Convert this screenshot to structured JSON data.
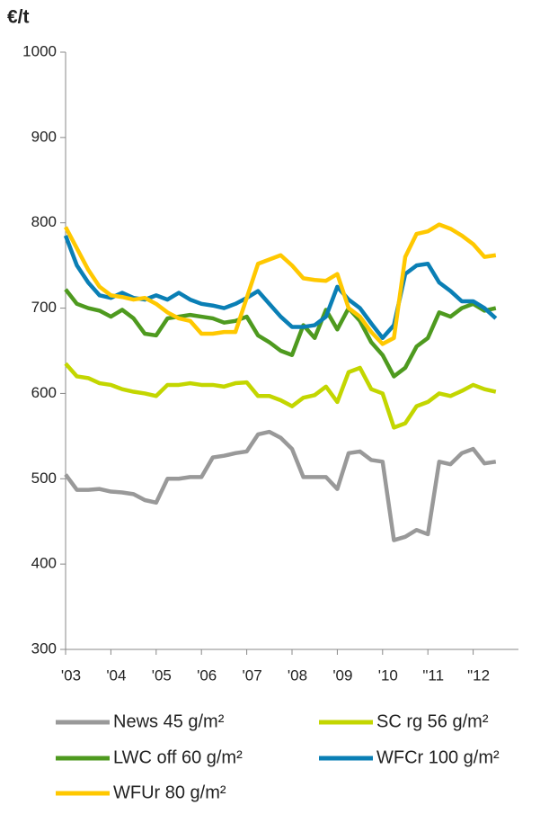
{
  "chart_data": {
    "type": "line",
    "title": "€/t",
    "x": [
      2003,
      2003.25,
      2003.5,
      2003.75,
      2004,
      2004.25,
      2004.5,
      2004.75,
      2005,
      2005.25,
      2005.5,
      2005.75,
      2006,
      2006.25,
      2006.5,
      2006.75,
      2007,
      2007.25,
      2007.5,
      2007.75,
      2008,
      2008.25,
      2008.5,
      2008.75,
      2009,
      2009.25,
      2009.5,
      2009.75,
      2010,
      2010.25,
      2010.5,
      2010.75,
      2011,
      2011.25,
      2011.5,
      2011.75,
      2012,
      2012.25,
      2012.5
    ],
    "series": [
      {
        "name": "News 45 g/m²",
        "color": "#999999",
        "values": [
          505,
          487,
          487,
          488,
          485,
          484,
          482,
          475,
          472,
          500,
          500,
          502,
          502,
          525,
          527,
          530,
          532,
          552,
          555,
          548,
          535,
          502,
          502,
          502,
          488,
          530,
          532,
          522,
          520,
          428,
          432,
          440,
          435,
          520,
          517,
          530,
          535,
          518,
          520
        ]
      },
      {
        "name": "SC rg 56 g/m²",
        "color": "#c3d600",
        "values": [
          635,
          620,
          618,
          612,
          610,
          605,
          602,
          600,
          597,
          610,
          610,
          612,
          610,
          610,
          608,
          612,
          613,
          597,
          597,
          592,
          585,
          595,
          598,
          608,
          590,
          625,
          630,
          605,
          600,
          560,
          565,
          585,
          590,
          600,
          597,
          603,
          610,
          605,
          602
        ]
      },
      {
        "name": "LWC off 60 g/m²",
        "color": "#4e9a1f",
        "values": [
          722,
          705,
          700,
          697,
          690,
          698,
          688,
          670,
          668,
          688,
          690,
          692,
          690,
          688,
          683,
          685,
          690,
          668,
          660,
          650,
          645,
          680,
          665,
          698,
          675,
          700,
          685,
          660,
          645,
          620,
          630,
          655,
          665,
          695,
          690,
          700,
          705,
          697,
          700
        ]
      },
      {
        "name": "WFCr 100 g/m²",
        "color": "#0a7fb5",
        "values": [
          785,
          750,
          730,
          715,
          712,
          718,
          712,
          710,
          715,
          710,
          718,
          710,
          705,
          703,
          700,
          705,
          712,
          720,
          705,
          690,
          678,
          678,
          680,
          690,
          725,
          710,
          700,
          682,
          665,
          680,
          740,
          750,
          752,
          730,
          720,
          708,
          708,
          700,
          688
        ]
      },
      {
        "name": "WFUr 80 g/m²",
        "color": "#ffc800",
        "values": [
          795,
          770,
          745,
          725,
          715,
          713,
          710,
          712,
          705,
          695,
          688,
          685,
          670,
          670,
          672,
          672,
          712,
          752,
          757,
          762,
          750,
          735,
          733,
          732,
          740,
          700,
          690,
          672,
          658,
          665,
          760,
          787,
          790,
          798,
          793,
          785,
          775,
          760,
          762
        ]
      }
    ],
    "xlim": [
      2003,
      2013
    ],
    "xticks": [
      {
        "value": 2003,
        "label": "'03"
      },
      {
        "value": 2004,
        "label": "'04"
      },
      {
        "value": 2005,
        "label": "'05"
      },
      {
        "value": 2006,
        "label": "'06"
      },
      {
        "value": 2007,
        "label": "'07"
      },
      {
        "value": 2008,
        "label": "'08"
      },
      {
        "value": 2009,
        "label": "'09"
      },
      {
        "value": 2010,
        "label": "'10"
      },
      {
        "value": 2011,
        "label": "\"11"
      },
      {
        "value": 2012,
        "label": "\"12"
      }
    ],
    "ylim": [
      300,
      1000
    ],
    "yticks": [
      300,
      400,
      500,
      600,
      700,
      800,
      900,
      1000
    ]
  }
}
